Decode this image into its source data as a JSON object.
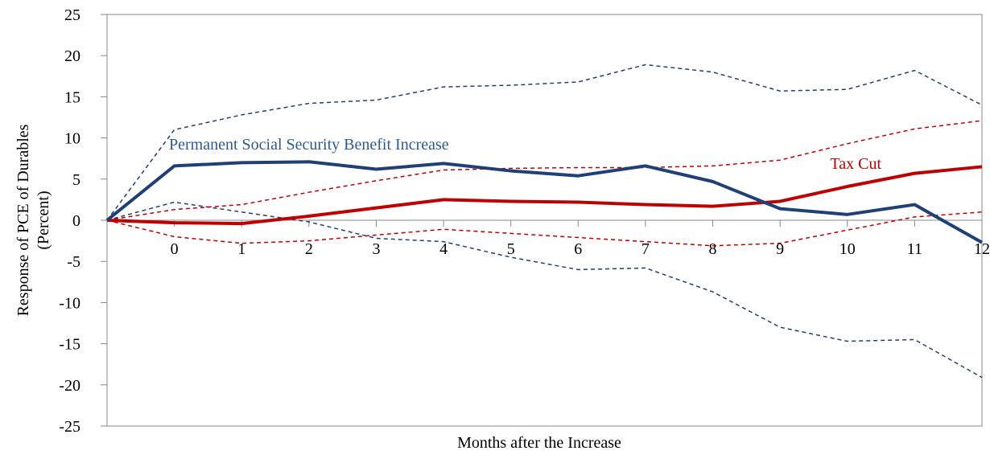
{
  "chart_data": {
    "type": "line",
    "xlabel": "Months after the Increase",
    "ylabel": [
      "Response of PCE of Durables",
      "(Percent)"
    ],
    "categories": [
      null,
      "0",
      "1",
      "2",
      "3",
      "4",
      "5",
      "6",
      "7",
      "8",
      "9",
      "10",
      "11",
      "12"
    ],
    "ylim": [
      -25,
      25
    ],
    "yticks": [
      -25,
      -20,
      -15,
      -10,
      -5,
      0,
      5,
      10,
      15,
      20,
      25
    ],
    "grid": false,
    "series": [
      {
        "color": "#1f3f77",
        "dash": true,
        "width": 1.5,
        "values": [
          0,
          11,
          12.8,
          14.2,
          14.6,
          16.2,
          16.4,
          16.8,
          18.9,
          18.0,
          15.7,
          15.9,
          18.2,
          14.0
        ]
      },
      {
        "color": "#1f3f77",
        "dash": true,
        "width": 1.5,
        "values": [
          0,
          2.2,
          1.0,
          -0.2,
          -2.2,
          -2.6,
          -4.5,
          -6.0,
          -5.8,
          -8.7,
          -13.0,
          -14.7,
          -14.5,
          -19.1
        ]
      },
      {
        "color": "#c00000",
        "dash": true,
        "width": 1.5,
        "values": [
          0,
          1.3,
          1.9,
          3.4,
          4.8,
          6.1,
          6.3,
          6.4,
          6.4,
          6.6,
          7.3,
          9.3,
          11.1,
          12.1
        ]
      },
      {
        "color": "#c00000",
        "dash": true,
        "width": 1.5,
        "values": [
          0,
          -2.0,
          -2.8,
          -2.5,
          -1.8,
          -1.1,
          -1.6,
          -2.1,
          -2.6,
          -3.1,
          -2.8,
          -1.2,
          0.4,
          1.0
        ]
      },
      {
        "color": "#c00000",
        "dash": false,
        "width": 4,
        "values": [
          0,
          -0.3,
          -0.4,
          0.5,
          1.5,
          2.5,
          2.3,
          2.2,
          1.9,
          1.7,
          2.3,
          4.1,
          5.7,
          6.5
        ]
      },
      {
        "color": "#1f3f77",
        "dash": false,
        "width": 4,
        "values": [
          0,
          6.6,
          7.0,
          7.1,
          6.2,
          6.9,
          6.0,
          5.4,
          6.6,
          4.7,
          1.4,
          0.7,
          1.9,
          -2.7
        ]
      }
    ],
    "annotations": [
      {
        "text": "Permanent Social Security Benefit Increase",
        "color": "#2e5a8e"
      },
      {
        "text": "Tax Cut",
        "color": "#c00000"
      }
    ]
  }
}
